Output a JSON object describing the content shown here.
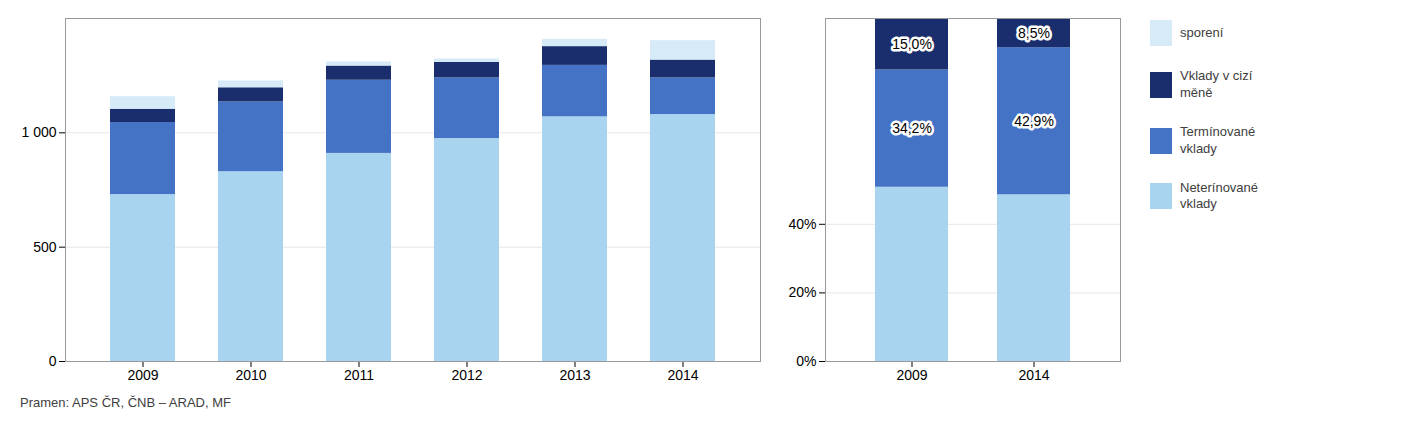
{
  "chart_data": [
    {
      "type": "bar",
      "stacked": true,
      "grid": true,
      "legend": "right",
      "categories": [
        "2009",
        "2010",
        "2011",
        "2012",
        "2013",
        "2014"
      ],
      "series": [
        {
          "name": "Neterínované\nvklady",
          "color": "#a8d4f0",
          "values": [
            730,
            830,
            910,
            975,
            1070,
            1080
          ]
        },
        {
          "name": "Termínované\nvklady",
          "color": "#4472c4",
          "values": [
            315,
            305,
            320,
            265,
            225,
            160
          ]
        },
        {
          "name": "Vklady v cizí\nměně",
          "color": "#1a2e6e",
          "values": [
            58,
            62,
            62,
            68,
            82,
            78
          ]
        },
        {
          "name": "sporení",
          "color": "#d6eaf8",
          "values": [
            55,
            30,
            18,
            15,
            32,
            85
          ]
        }
      ],
      "ylim": [
        0,
        1500
      ],
      "yticks": [
        0,
        500,
        {
          "value": 1000,
          "label": "1 000"
        }
      ],
      "note": "Pramen: APS ČR, ČNB – ARAD, MF"
    },
    {
      "type": "bar",
      "stacked": true,
      "grid": true,
      "data_labels": true,
      "categories": [
        "2009",
        "2014"
      ],
      "series": [
        {
          "name": "Neterínované\nvklady",
          "color": "#a8d4f0",
          "values": [
            50.8,
            48.6
          ]
        },
        {
          "name": "Termínované\nvklady",
          "color": "#4472c4",
          "values": [
            34.2,
            42.9
          ],
          "value_labels": [
            "34,2%",
            "42,9%"
          ]
        },
        {
          "name": "Vklady v cizí\nměně",
          "color": "#1a2e6e",
          "values": [
            15.0,
            8.5
          ],
          "value_labels": [
            "15,0%",
            "8,5%"
          ]
        },
        {
          "name": "sporení",
          "color": "#d6eaf8",
          "values": [
            0,
            0
          ]
        }
      ],
      "ylim": [
        0,
        100
      ],
      "yticks": [
        {
          "value": 0,
          "label": "0%"
        },
        {
          "value": 20,
          "label": "20%"
        },
        {
          "value": 40,
          "label": "40%"
        }
      ]
    }
  ]
}
